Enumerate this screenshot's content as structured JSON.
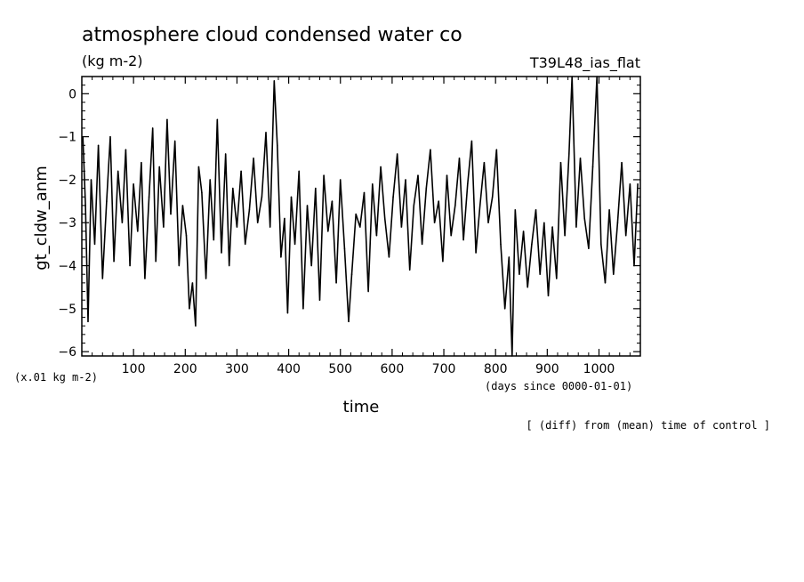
{
  "chart_data": {
    "type": "line",
    "title": "atmosphere cloud condensed water co",
    "subtitle": "(kg m-2)",
    "experiment_label": "T39L48_ias_flat",
    "xlabel": "time",
    "x_unit_label": "(days since 0000-01-01)",
    "ylabel": "gt_cldw_anm",
    "y_unit_label": "(x.01 kg m-2)",
    "note": "[ (diff) from (mean) time of control ]",
    "xlim": [
      0,
      1080
    ],
    "ylim": [
      -6.1,
      0.4
    ],
    "x_ticks": [
      100,
      200,
      300,
      400,
      500,
      600,
      700,
      800,
      900,
      1000
    ],
    "x_tick_labels": [
      "100",
      "200",
      "300",
      "400",
      "500",
      "600",
      "700",
      "800",
      "900",
      "1000"
    ],
    "y_ticks": [
      0,
      -1,
      -2,
      -3,
      -4,
      -5,
      -6
    ],
    "y_tick_labels": [
      "0",
      "−1",
      "−2",
      "−3",
      "−4",
      "−5",
      "−6"
    ],
    "grid": false,
    "series": [
      {
        "x": [
          2,
          7,
          12,
          18,
          25,
          32,
          40,
          48,
          55,
          62,
          70,
          78,
          85,
          93,
          100,
          108,
          115,
          122,
          130,
          137,
          143,
          150,
          158,
          165,
          172,
          180,
          188,
          195,
          202,
          208,
          214,
          220,
          226,
          232,
          240,
          248,
          255,
          262,
          270,
          278,
          285,
          292,
          300,
          308,
          316,
          324,
          332,
          340,
          348,
          356,
          364,
          372,
          378,
          385,
          392,
          398,
          405,
          412,
          420,
          428,
          436,
          444,
          452,
          460,
          468,
          476,
          484,
          492,
          500,
          508,
          516,
          522,
          530,
          538,
          546,
          554,
          562,
          570,
          578,
          586,
          594,
          602,
          610,
          618,
          626,
          634,
          642,
          650,
          658,
          666,
          674,
          682,
          690,
          698,
          706,
          714,
          722,
          730,
          738,
          746,
          754,
          762,
          770,
          778,
          786,
          794,
          802,
          810,
          818,
          826,
          832,
          838,
          846,
          854,
          862,
          870,
          878,
          886,
          894,
          902,
          910,
          918,
          926,
          934,
          942,
          948,
          956,
          964,
          972,
          980,
          988,
          996,
          1004,
          1012,
          1020,
          1028,
          1036,
          1044,
          1052,
          1060,
          1068,
          1075
        ],
        "y": [
          -1.0,
          -2.6,
          -5.3,
          -2.0,
          -3.5,
          -1.2,
          -4.3,
          -2.5,
          -1.0,
          -3.9,
          -1.8,
          -3.0,
          -1.3,
          -4.0,
          -2.1,
          -3.2,
          -1.6,
          -4.3,
          -2.4,
          -0.8,
          -3.9,
          -1.7,
          -3.1,
          -0.6,
          -2.8,
          -1.1,
          -4.0,
          -2.6,
          -3.3,
          -5.0,
          -4.4,
          -5.4,
          -1.7,
          -2.3,
          -4.3,
          -2.0,
          -3.4,
          -0.6,
          -3.7,
          -1.4,
          -4.0,
          -2.2,
          -3.1,
          -1.8,
          -3.5,
          -2.7,
          -1.5,
          -3.0,
          -2.4,
          -0.9,
          -3.1,
          0.3,
          -1.2,
          -3.8,
          -2.9,
          -5.1,
          -2.4,
          -3.5,
          -1.8,
          -5.0,
          -2.6,
          -4.0,
          -2.2,
          -4.8,
          -1.9,
          -3.2,
          -2.5,
          -4.4,
          -2.0,
          -3.6,
          -5.3,
          -4.2,
          -2.8,
          -3.1,
          -2.3,
          -4.6,
          -2.1,
          -3.3,
          -1.7,
          -2.9,
          -3.8,
          -2.4,
          -1.4,
          -3.1,
          -2.0,
          -4.1,
          -2.6,
          -1.9,
          -3.5,
          -2.2,
          -1.3,
          -3.0,
          -2.5,
          -3.9,
          -1.9,
          -3.3,
          -2.6,
          -1.5,
          -3.4,
          -2.1,
          -1.1,
          -3.7,
          -2.6,
          -1.6,
          -3.0,
          -2.4,
          -1.3,
          -3.5,
          -5.0,
          -3.8,
          -6.1,
          -2.7,
          -4.2,
          -3.2,
          -4.5,
          -3.5,
          -2.7,
          -4.2,
          -3.0,
          -4.7,
          -3.1,
          -4.3,
          -1.6,
          -3.3,
          -1.4,
          0.4,
          -3.1,
          -1.5,
          -2.9,
          -3.6,
          -1.7,
          0.4,
          -3.5,
          -4.4,
          -2.7,
          -4.2,
          -3.0,
          -1.6,
          -3.3,
          -2.1,
          -4.0,
          -2.1
        ]
      }
    ]
  }
}
